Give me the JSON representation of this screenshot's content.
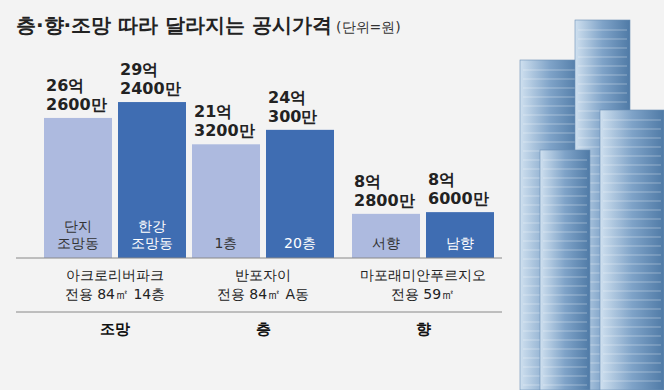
{
  "title": "층·향·조망 따라 달라지는 공시가격",
  "unit": "(단위=원)",
  "chart_data": [
    {
      "type": "bar",
      "title": "조망",
      "xlabel": [
        "아크로리버파크",
        "전용 84㎡ 14층"
      ],
      "categories": [
        "단지 조망동",
        "한강 조망동"
      ],
      "values": [
        2626000000,
        2924000000
      ],
      "value_labels": [
        "26억 2600만",
        "29억 2400만"
      ],
      "colors": [
        "#adbadf",
        "#3f6db2"
      ],
      "ylim": [
        0,
        3000000000
      ],
      "data_labels": true,
      "tick_labels": false
    },
    {
      "type": "bar",
      "title": "층",
      "xlabel": [
        "반포자이",
        "전용 84㎡ A동"
      ],
      "categories": [
        "1층",
        "20층"
      ],
      "values": [
        2132000000,
        2403000000
      ],
      "value_labels": [
        "21억 3200만",
        "24억 300만"
      ],
      "colors": [
        "#adbadf",
        "#3f6db2"
      ],
      "ylim": [
        0,
        3000000000
      ],
      "data_labels": true,
      "tick_labels": false
    },
    {
      "type": "bar",
      "title": "향",
      "xlabel": [
        "마포래미안푸르지오",
        "전용 59㎡"
      ],
      "categories": [
        "서향",
        "남향"
      ],
      "values": [
        828000000,
        860000000
      ],
      "value_labels": [
        "8억 2800만",
        "8억 6000만"
      ],
      "colors": [
        "#adbadf",
        "#3f6db2"
      ],
      "ylim": [
        0,
        3000000000
      ],
      "data_labels": true,
      "tick_labels": false
    }
  ]
}
